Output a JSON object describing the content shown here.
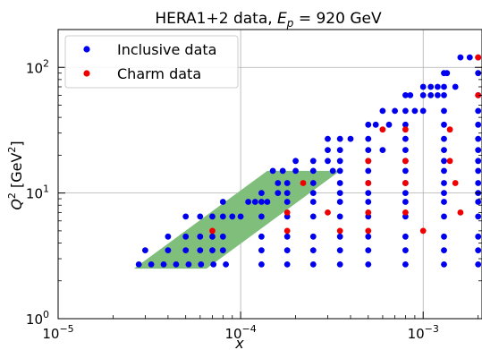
{
  "chart_data": {
    "type": "scatter",
    "title_text": "HERA1+2 data, ",
    "title_var": "E",
    "title_sub": "p",
    "title_value": " = 920 GeV",
    "xlabel": "x",
    "ylabel_var": "Q",
    "ylabel_sup": "2",
    "ylabel_unit_pre": " [GeV",
    "ylabel_unit_sup": "2",
    "ylabel_unit_post": "]",
    "x_scale": "log",
    "y_scale": "log",
    "xlim": [
      1e-05,
      0.0021
    ],
    "ylim": [
      1,
      200
    ],
    "grid": true,
    "legend_position": "top-left",
    "x_ticks": [
      {
        "value": 1e-05,
        "base": "10",
        "exp": "−5"
      },
      {
        "value": 0.0001,
        "base": "10",
        "exp": "−4"
      },
      {
        "value": 0.001,
        "base": "10",
        "exp": "−3"
      }
    ],
    "y_ticks": [
      {
        "value": 1,
        "base": "10",
        "exp": "0"
      },
      {
        "value": 10,
        "base": "10",
        "exp": "1"
      },
      {
        "value": 100,
        "base": "10",
        "exp": "2"
      }
    ],
    "kinematic_band": {
      "color": "#7fbf7b",
      "points": [
        [
          2.6e-05,
          2.5
        ],
        [
          6.5e-05,
          2.5
        ],
        [
          0.00035,
          15
        ],
        [
          0.00014,
          15
        ]
      ]
    },
    "series": [
      {
        "name": "Inclusive data",
        "color": "#0000ee",
        "points": [
          [
            2.767e-05,
            2.7
          ],
          [
            3.237e-05,
            2.7
          ],
          [
            3.786e-05,
            2.7
          ],
          [
            4.43e-05,
            2.7
          ],
          [
            5.183e-05,
            2.7
          ],
          [
            6.064e-05,
            2.7
          ],
          [
            7.094e-05,
            2.7
          ],
          [
            8.3e-05,
            2.7
          ],
          [
            0.00013,
            2.7
          ],
          [
            0.00018,
            2.7
          ],
          [
            0.00025,
            2.7
          ],
          [
            0.00035,
            2.7
          ],
          [
            0.0005,
            2.7
          ],
          [
            0.0008,
            2.7
          ],
          [
            0.0013,
            2.7
          ],
          [
            0.002,
            2.7
          ],
          [
            3e-05,
            3.5
          ],
          [
            4e-05,
            3.5
          ],
          [
            5e-05,
            3.5
          ],
          [
            6e-05,
            3.5
          ],
          [
            7e-05,
            3.5
          ],
          [
            8e-05,
            3.5
          ],
          [
            0.00013,
            3.5
          ],
          [
            0.00018,
            3.5
          ],
          [
            0.00025,
            3.5
          ],
          [
            0.00035,
            3.5
          ],
          [
            0.0005,
            3.5
          ],
          [
            0.0008,
            3.5
          ],
          [
            0.0013,
            3.5
          ],
          [
            0.002,
            3.5
          ],
          [
            4e-05,
            4.5
          ],
          [
            5e-05,
            4.5
          ],
          [
            6e-05,
            4.5
          ],
          [
            7e-05,
            4.5
          ],
          [
            8e-05,
            4.5
          ],
          [
            0.00013,
            4.5
          ],
          [
            0.00018,
            4.5
          ],
          [
            0.00025,
            4.5
          ],
          [
            0.00035,
            4.5
          ],
          [
            0.0005,
            4.5
          ],
          [
            0.0008,
            4.5
          ],
          [
            0.0013,
            4.5
          ],
          [
            0.002,
            4.5
          ],
          [
            5e-05,
            6.5
          ],
          [
            6e-05,
            6.5
          ],
          [
            7e-05,
            6.5
          ],
          [
            8e-05,
            6.5
          ],
          [
            9e-05,
            6.5
          ],
          [
            0.0001,
            6.5
          ],
          [
            0.00013,
            6.5
          ],
          [
            0.00018,
            6.5
          ],
          [
            0.00025,
            6.5
          ],
          [
            0.00035,
            6.5
          ],
          [
            0.0005,
            6.5
          ],
          [
            0.0008,
            6.5
          ],
          [
            0.0013,
            6.5
          ],
          [
            0.002,
            6.5
          ],
          [
            8e-05,
            8.5
          ],
          [
            0.00011,
            8.5
          ],
          [
            0.00012,
            8.5
          ],
          [
            0.00013,
            8.5
          ],
          [
            0.00014,
            8.5
          ],
          [
            0.00018,
            8.5
          ],
          [
            0.00025,
            8.5
          ],
          [
            0.00035,
            8.5
          ],
          [
            0.0005,
            8.5
          ],
          [
            0.0008,
            8.5
          ],
          [
            0.0013,
            8.5
          ],
          [
            0.002,
            8.5
          ],
          [
            0.00013,
            10
          ],
          [
            0.00016,
            10
          ],
          [
            0.00018,
            10
          ],
          [
            0.00025,
            10
          ],
          [
            0.00035,
            10
          ],
          [
            0.0005,
            10
          ],
          [
            0.0008,
            10
          ],
          [
            0.0013,
            10
          ],
          [
            0.002,
            10
          ],
          [
            0.00016,
            12
          ],
          [
            0.00018,
            12
          ],
          [
            0.00025,
            12
          ],
          [
            0.00035,
            12
          ],
          [
            0.0005,
            12
          ],
          [
            0.0008,
            12
          ],
          [
            0.0013,
            12
          ],
          [
            0.002,
            12
          ],
          [
            0.00015,
            15
          ],
          [
            0.00017,
            15
          ],
          [
            0.0002,
            15
          ],
          [
            0.00025,
            15
          ],
          [
            0.00032,
            15
          ],
          [
            0.00035,
            15
          ],
          [
            0.0005,
            15
          ],
          [
            0.0008,
            15
          ],
          [
            0.0013,
            15
          ],
          [
            0.002,
            15
          ],
          [
            0.0002,
            18
          ],
          [
            0.00025,
            18
          ],
          [
            0.0003,
            18
          ],
          [
            0.00035,
            18
          ],
          [
            0.0005,
            18
          ],
          [
            0.0008,
            18
          ],
          [
            0.0013,
            18
          ],
          [
            0.002,
            18
          ],
          [
            0.0003,
            22
          ],
          [
            0.00035,
            22
          ],
          [
            0.0005,
            22
          ],
          [
            0.0006,
            22
          ],
          [
            0.0008,
            22
          ],
          [
            0.0013,
            22
          ],
          [
            0.002,
            22
          ],
          [
            0.0003,
            27
          ],
          [
            0.00035,
            27
          ],
          [
            0.0004,
            27
          ],
          [
            0.0005,
            27
          ],
          [
            0.0008,
            27
          ],
          [
            0.0013,
            27
          ],
          [
            0.002,
            27
          ],
          [
            0.0005,
            35
          ],
          [
            0.00055,
            35
          ],
          [
            0.00065,
            35
          ],
          [
            0.0008,
            35
          ],
          [
            0.0013,
            35
          ],
          [
            0.002,
            35
          ],
          [
            0.0006,
            45
          ],
          [
            0.0007,
            45
          ],
          [
            0.0008,
            45
          ],
          [
            0.0009,
            45
          ],
          [
            0.001,
            45
          ],
          [
            0.0013,
            45
          ],
          [
            0.002,
            45
          ],
          [
            0.0008,
            60
          ],
          [
            0.00085,
            60
          ],
          [
            0.001,
            60
          ],
          [
            0.0011,
            60
          ],
          [
            0.0012,
            60
          ],
          [
            0.0013,
            60
          ],
          [
            0.002,
            60
          ],
          [
            0.001,
            70
          ],
          [
            0.0011,
            70
          ],
          [
            0.0012,
            70
          ],
          [
            0.0013,
            70
          ],
          [
            0.0015,
            70
          ],
          [
            0.0013,
            90
          ],
          [
            0.00135,
            90
          ],
          [
            0.002,
            90
          ],
          [
            0.0016,
            120
          ],
          [
            0.0018,
            120
          ],
          [
            0.002,
            120
          ]
        ]
      },
      {
        "name": "Charm data",
        "color": "#ee0000",
        "points": [
          [
            7e-05,
            5
          ],
          [
            0.00018,
            5
          ],
          [
            0.00035,
            5
          ],
          [
            0.0005,
            5
          ],
          [
            0.001,
            5
          ],
          [
            0.00018,
            7
          ],
          [
            0.0003,
            7
          ],
          [
            0.0005,
            7
          ],
          [
            0.0008,
            7
          ],
          [
            0.0016,
            7
          ],
          [
            0.00022,
            12
          ],
          [
            0.0005,
            12
          ],
          [
            0.0008,
            12
          ],
          [
            0.0015,
            12
          ],
          [
            0.0005,
            18
          ],
          [
            0.0008,
            18
          ],
          [
            0.0014,
            18
          ],
          [
            0.0008,
            32
          ],
          [
            0.0006,
            32
          ],
          [
            0.0014,
            32
          ],
          [
            0.002,
            60
          ],
          [
            0.002,
            120
          ]
        ]
      }
    ]
  }
}
